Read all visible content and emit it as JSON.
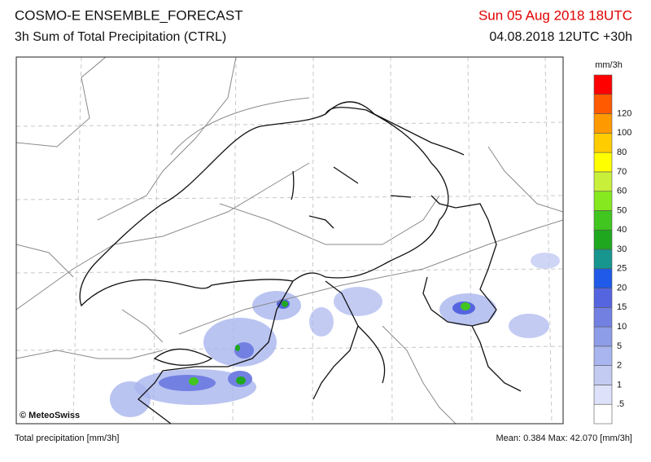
{
  "header": {
    "title": "COSMO-E ENSEMBLE_FORECAST",
    "subtitle": "3h Sum of Total Precipitation (CTRL)",
    "valid_time": "Sun 05 Aug 2018 18UTC",
    "run": "04.08.2018 12UTC +30h"
  },
  "legend": {
    "unit": "mm/3h",
    "labels": [
      ".5",
      "1",
      "2",
      "5",
      "10",
      "15",
      "20",
      "25",
      "30",
      "40",
      "50",
      "60",
      "70",
      "80",
      "100",
      "120"
    ],
    "colors": [
      "#ffffff",
      "#dde1f9",
      "#c3cbf3",
      "#a9b5ee",
      "#8e9de8",
      "#7280e2",
      "#5565e0",
      "#1f5ae8",
      "#17958f",
      "#1fa81f",
      "#41c61f",
      "#86e81f",
      "#c8f03a",
      "#ffff00",
      "#ffcc00",
      "#ff9900",
      "#ff5a00",
      "#ff0000"
    ]
  },
  "map": {
    "credit": "© MeteoSwiss"
  },
  "footer": {
    "left": "Total precipitation [mm/3h]",
    "stats": "Mean:  0.384 Max: 42.070 [mm/3h]"
  }
}
